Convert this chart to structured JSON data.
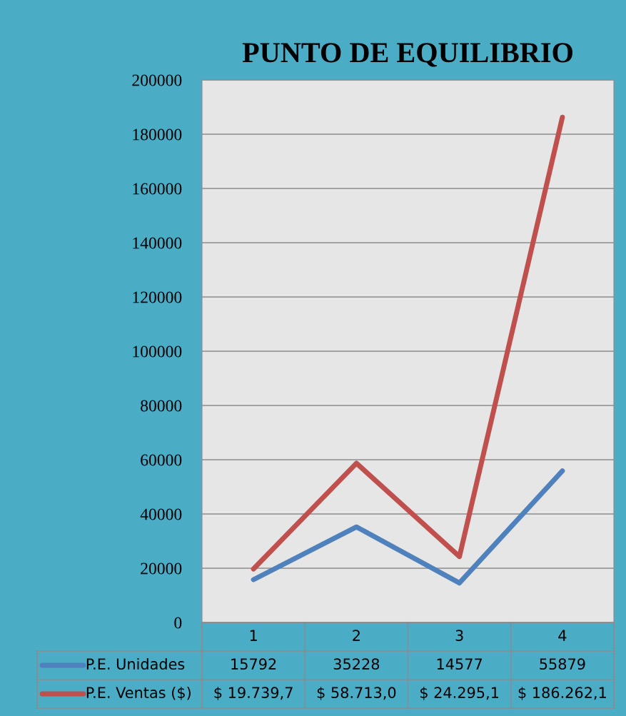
{
  "chart_data": {
    "type": "line",
    "title": "PUNTO DE EQUILIBRIO",
    "categories": [
      "1",
      "2",
      "3",
      "4"
    ],
    "series": [
      {
        "name": "P.E. Unidades",
        "color": "#4f81bd",
        "values": [
          15792,
          35228,
          14577,
          55879
        ],
        "value_labels": [
          "15792",
          "35228",
          "14577",
          "55879"
        ]
      },
      {
        "name": "P.E. Ventas ($)",
        "color": "#c0504d",
        "values": [
          19739.7,
          58713.0,
          24295.1,
          186262.1
        ],
        "value_labels": [
          "$ 19.739,7",
          "$ 58.713,0",
          "$ 24.295,1",
          "$ 186.262,1"
        ]
      }
    ],
    "ylim": [
      0,
      200000
    ],
    "yticks": [
      0,
      20000,
      40000,
      60000,
      80000,
      100000,
      120000,
      140000,
      160000,
      180000,
      200000
    ],
    "grid": "y",
    "legend": "bottom",
    "marker": "none",
    "line_style": "solid"
  }
}
